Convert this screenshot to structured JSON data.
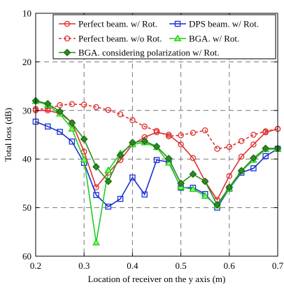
{
  "chart_data": {
    "type": "line",
    "title": "",
    "xlabel": "Location of receiver on the y axis (m)",
    "ylabel": "Total loss (dB)",
    "xlim": [
      0.2,
      0.7
    ],
    "ylim": [
      10,
      60
    ],
    "y_inverted": true,
    "x_ticks": [
      "0.2",
      "0.3",
      "0.4",
      "0.5",
      "0.6",
      "0.7"
    ],
    "y_ticks": [
      "10",
      "20",
      "30",
      "40",
      "50",
      "60"
    ],
    "grid": true,
    "legend_position": "top-right",
    "series": [
      {
        "name": "Perfect beam. w/ Rot.",
        "color": "#e03030",
        "marker": "circle",
        "dashed": false,
        "x": [
          0.2,
          0.225,
          0.25,
          0.275,
          0.3,
          0.325,
          0.35,
          0.375,
          0.4,
          0.425,
          0.45,
          0.475,
          0.5,
          0.525,
          0.55,
          0.575,
          0.6,
          0.625,
          0.65,
          0.675,
          0.7
        ],
        "y": [
          30.0,
          30.0,
          30.6,
          32.5,
          38.5,
          45.8,
          42.8,
          40.2,
          37.0,
          35.5,
          34.5,
          35.0,
          37.0,
          39.8,
          44.6,
          48.4,
          43.5,
          39.5,
          37.0,
          34.5,
          33.8
        ]
      },
      {
        "name": "Perfect beam. w/o Rot.",
        "color": "#e03030",
        "marker": "circle",
        "dashed": true,
        "x": [
          0.2,
          0.225,
          0.25,
          0.275,
          0.3,
          0.325,
          0.35,
          0.375,
          0.4,
          0.425,
          0.45,
          0.475,
          0.5,
          0.525,
          0.55,
          0.575,
          0.6,
          0.625,
          0.65,
          0.675,
          0.7
        ],
        "y": [
          29.7,
          29.7,
          28.9,
          28.7,
          28.8,
          29.3,
          29.9,
          30.8,
          32.0,
          33.3,
          34.2,
          35.3,
          35.1,
          34.6,
          34.1,
          37.9,
          37.5,
          36.3,
          35.0,
          34.3,
          33.8
        ]
      },
      {
        "name": "DPS beam. w/ Rot.",
        "color": "#1a2fd6",
        "marker": "square",
        "dashed": false,
        "x": [
          0.2,
          0.225,
          0.25,
          0.275,
          0.3,
          0.325,
          0.35,
          0.375,
          0.4,
          0.425,
          0.45,
          0.475,
          0.5,
          0.525,
          0.55,
          0.575,
          0.6,
          0.625,
          0.65,
          0.675,
          0.7
        ],
        "y": [
          32.3,
          33.3,
          34.4,
          36.4,
          40.8,
          47.4,
          49.8,
          48.2,
          43.8,
          47.3,
          40.2,
          40.6,
          45.9,
          45.9,
          47.2,
          50.0,
          46.1,
          42.8,
          41.9,
          39.4,
          37.9
        ]
      },
      {
        "name": "BGA. w/ Rot.",
        "color": "#22cc22",
        "marker": "triangle",
        "dashed": false,
        "x": [
          0.2,
          0.225,
          0.25,
          0.275,
          0.3,
          0.325,
          0.35,
          0.375,
          0.4,
          0.425,
          0.45,
          0.475,
          0.5,
          0.525,
          0.55,
          0.575,
          0.6,
          0.625,
          0.65,
          0.675,
          0.7
        ],
        "y": [
          28.1,
          28.9,
          30.7,
          33.8,
          40.1,
          57.2,
          42.3,
          38.8,
          37.0,
          36.6,
          37.6,
          40.8,
          45.8,
          46.2,
          47.6,
          49.6,
          46.1,
          42.5,
          40.2,
          38.0,
          37.9
        ]
      },
      {
        "name": "BGA. considering polarization w/ Rot.",
        "color": "#2e8b22",
        "marker": "diamond",
        "dashed": false,
        "x": [
          0.2,
          0.225,
          0.25,
          0.275,
          0.3,
          0.325,
          0.35,
          0.375,
          0.4,
          0.425,
          0.45,
          0.475,
          0.5,
          0.525,
          0.55,
          0.575,
          0.6,
          0.625,
          0.65,
          0.675,
          0.7
        ],
        "y": [
          28.0,
          28.6,
          30.2,
          32.6,
          35.9,
          41.6,
          44.6,
          39.2,
          36.6,
          36.3,
          37.4,
          39.9,
          45.0,
          43.1,
          44.6,
          49.4,
          45.8,
          42.4,
          39.8,
          37.8,
          37.8
        ]
      }
    ]
  }
}
